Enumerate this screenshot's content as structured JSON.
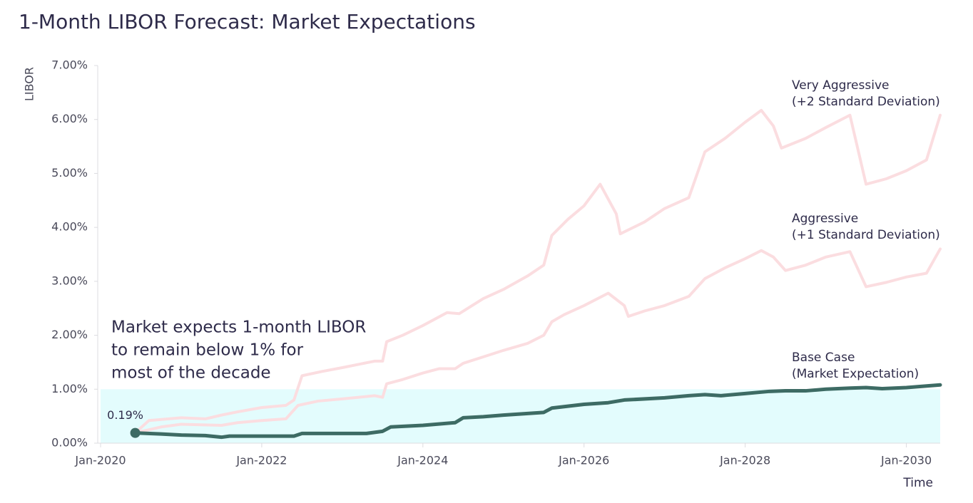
{
  "chart_data": {
    "type": "line",
    "title": "1-Month LIBOR Forecast: Market Expectations",
    "x_label": "Time",
    "y_label": "LIBOR",
    "annotation": [
      "Market expects 1-month LIBOR",
      "to remain below 1% for",
      "most of the decade"
    ],
    "band": [
      0,
      1
    ],
    "band_color": "#e3fcfd",
    "xlim": [
      2020,
      2030.42
    ],
    "xticks": [
      {
        "value": 2020,
        "label": "Jan-2020"
      },
      {
        "value": 2022,
        "label": "Jan-2022"
      },
      {
        "value": 2024,
        "label": "Jan-2024"
      },
      {
        "value": 2026,
        "label": "Jan-2026"
      },
      {
        "value": 2028,
        "label": "Jan-2028"
      },
      {
        "value": 2030,
        "label": "Jan-2030"
      }
    ],
    "ylim": [
      0,
      7
    ],
    "yticks": [
      {
        "value": 0,
        "label": "0.00%"
      },
      {
        "value": 1,
        "label": "1.00%"
      },
      {
        "value": 2,
        "label": "2.00%"
      },
      {
        "value": 3,
        "label": "3.00%"
      },
      {
        "value": 4,
        "label": "4.00%"
      },
      {
        "value": 5,
        "label": "5.00%"
      },
      {
        "value": 6,
        "label": "6.00%"
      },
      {
        "value": 7,
        "label": "7.00%"
      }
    ],
    "series": [
      {
        "name": "Very Aggressive",
        "detail": "(+2 Standard Deviation)",
        "color": "#fbdde0",
        "x": [
          2020.43,
          2020.6,
          2021.0,
          2021.3,
          2021.5,
          2021.7,
          2022.0,
          2022.3,
          2022.4,
          2022.5,
          2022.75,
          2023.0,
          2023.4,
          2023.5,
          2023.55,
          2023.75,
          2024.0,
          2024.3,
          2024.45,
          2024.75,
          2025.0,
          2025.3,
          2025.5,
          2025.6,
          2025.8,
          2026.0,
          2026.2,
          2026.4,
          2026.45,
          2026.75,
          2027.0,
          2027.3,
          2027.5,
          2027.75,
          2028.0,
          2028.2,
          2028.35,
          2028.45,
          2028.75,
          2029.0,
          2029.3,
          2029.5,
          2029.75,
          2030.0,
          2030.25,
          2030.42
        ],
        "values": [
          0.19,
          0.42,
          0.47,
          0.45,
          0.52,
          0.58,
          0.66,
          0.7,
          0.8,
          1.25,
          1.33,
          1.4,
          1.52,
          1.52,
          1.88,
          2.0,
          2.18,
          2.42,
          2.4,
          2.68,
          2.85,
          3.1,
          3.3,
          3.85,
          4.15,
          4.4,
          4.8,
          4.25,
          3.88,
          4.1,
          4.35,
          4.55,
          5.4,
          5.65,
          5.95,
          6.17,
          5.88,
          5.47,
          5.65,
          5.85,
          6.08,
          4.8,
          4.9,
          5.05,
          5.25,
          6.08
        ]
      },
      {
        "name": "Aggressive",
        "detail": "(+1 Standard Deviation)",
        "color": "#fbdde0",
        "x": [
          2020.43,
          2020.75,
          2021.0,
          2021.5,
          2021.7,
          2022.0,
          2022.3,
          2022.45,
          2022.7,
          2023.0,
          2023.4,
          2023.5,
          2023.55,
          2023.75,
          2024.0,
          2024.2,
          2024.4,
          2024.5,
          2024.75,
          2025.0,
          2025.3,
          2025.5,
          2025.6,
          2025.75,
          2026.0,
          2026.3,
          2026.5,
          2026.55,
          2026.75,
          2027.0,
          2027.3,
          2027.5,
          2027.75,
          2028.0,
          2028.2,
          2028.35,
          2028.5,
          2028.75,
          2029.0,
          2029.3,
          2029.5,
          2029.75,
          2030.0,
          2030.25,
          2030.42
        ],
        "values": [
          0.19,
          0.3,
          0.35,
          0.33,
          0.38,
          0.42,
          0.45,
          0.7,
          0.78,
          0.82,
          0.88,
          0.85,
          1.1,
          1.18,
          1.3,
          1.38,
          1.38,
          1.48,
          1.6,
          1.72,
          1.85,
          2.0,
          2.25,
          2.38,
          2.55,
          2.78,
          2.55,
          2.35,
          2.45,
          2.55,
          2.72,
          3.05,
          3.25,
          3.42,
          3.57,
          3.45,
          3.2,
          3.3,
          3.45,
          3.55,
          2.9,
          2.98,
          3.08,
          3.15,
          3.6
        ]
      },
      {
        "name": "Base Case",
        "detail": "(Market Expectation)",
        "color": "#3d6b64",
        "x": [
          2020.43,
          2020.75,
          2021.0,
          2021.3,
          2021.5,
          2021.6,
          2022.0,
          2022.4,
          2022.5,
          2023.0,
          2023.3,
          2023.5,
          2023.6,
          2024.0,
          2024.4,
          2024.5,
          2024.75,
          2025.0,
          2025.3,
          2025.5,
          2025.6,
          2026.0,
          2026.3,
          2026.5,
          2027.0,
          2027.3,
          2027.5,
          2027.7,
          2028.0,
          2028.3,
          2028.5,
          2028.75,
          2029.0,
          2029.3,
          2029.5,
          2029.7,
          2030.0,
          2030.42
        ],
        "values": [
          0.19,
          0.17,
          0.15,
          0.14,
          0.11,
          0.13,
          0.13,
          0.13,
          0.18,
          0.18,
          0.18,
          0.22,
          0.3,
          0.33,
          0.38,
          0.47,
          0.49,
          0.52,
          0.55,
          0.57,
          0.65,
          0.72,
          0.75,
          0.8,
          0.84,
          0.88,
          0.9,
          0.88,
          0.92,
          0.96,
          0.97,
          0.97,
          1.0,
          1.02,
          1.03,
          1.01,
          1.03,
          1.08
        ],
        "value_labels": [
          "0.19%",
          null,
          null,
          null,
          null,
          null,
          null,
          null,
          null,
          null,
          null,
          null,
          null,
          null,
          null,
          null,
          null,
          null,
          null,
          null,
          null,
          null,
          null,
          null,
          null,
          null,
          null,
          null,
          null,
          null,
          null,
          null,
          null,
          null,
          null,
          null,
          null,
          null
        ]
      }
    ]
  }
}
